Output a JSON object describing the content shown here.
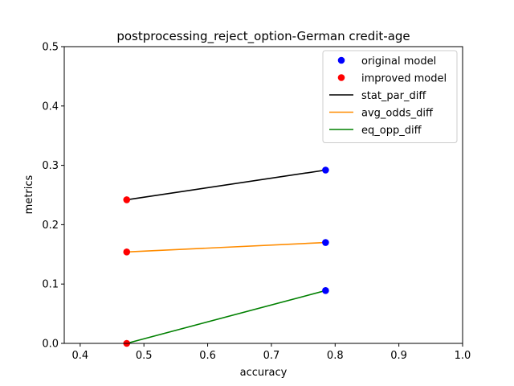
{
  "chart_data": {
    "type": "line",
    "title": "postprocessing_reject_option-German credit-age",
    "xlabel": "accuracy",
    "ylabel": "metrics",
    "xlim": [
      0.375,
      1.0
    ],
    "ylim": [
      0,
      0.5
    ],
    "xticks": [
      "0.4",
      "0.5",
      "0.6",
      "0.7",
      "0.8",
      "0.9",
      "1.0"
    ],
    "yticks": [
      "0.0",
      "0.1",
      "0.2",
      "0.3",
      "0.4",
      "0.5"
    ],
    "grid": false,
    "legend_position": "top-right",
    "markers": [
      {
        "name": "original model",
        "color": "#0000ff"
      },
      {
        "name": "improved model",
        "color": "#ff0000"
      }
    ],
    "series": [
      {
        "name": "stat_par_diff",
        "color": "#000000",
        "x": [
          0.785,
          0.473
        ],
        "y": [
          0.292,
          0.242
        ]
      },
      {
        "name": "avg_odds_diff",
        "color": "#ff8c00",
        "x": [
          0.785,
          0.473
        ],
        "y": [
          0.17,
          0.154
        ]
      },
      {
        "name": "eq_opp_diff",
        "color": "#008000",
        "x": [
          0.785,
          0.473
        ],
        "y": [
          0.089,
          0.0
        ]
      }
    ]
  }
}
